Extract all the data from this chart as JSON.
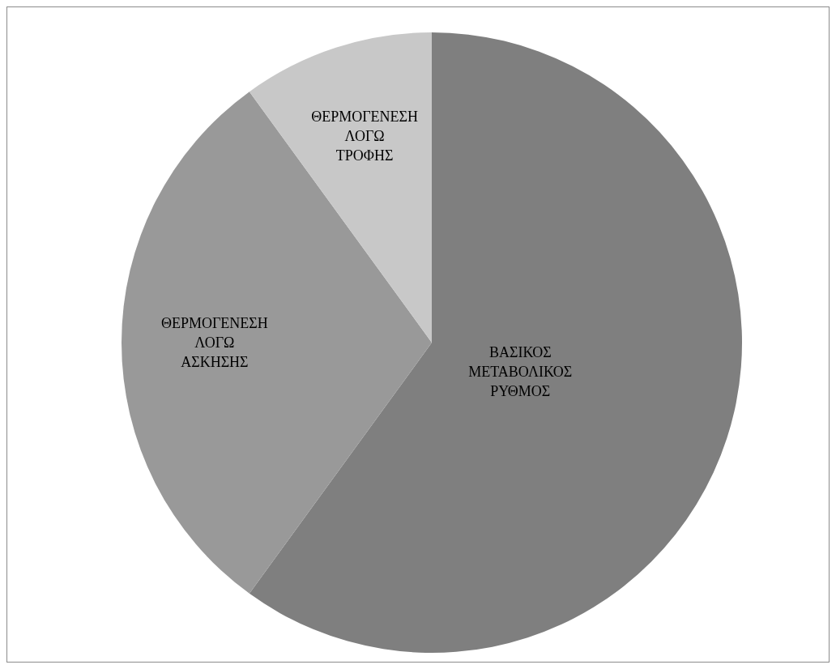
{
  "chart_data": {
    "type": "pie",
    "categories": [
      "ΒΑΣΙΚΟΣ ΜΕΤΑΒΟΛΙΚΟΣ ΡΥΘΜΟΣ",
      "ΘΕΡΜΟΓΕΝΕΣΗ ΛΟΓΩ ΑΣΚΗΣΗΣ",
      "ΘΕΡΜΟΓΕΝΕΣΗ ΛΟΓΩ ΤΡΟΦΗΣ"
    ],
    "values": [
      60,
      30,
      10
    ],
    "colors": [
      "#7f7f7f",
      "#999999",
      "#c8c8c8"
    ]
  }
}
